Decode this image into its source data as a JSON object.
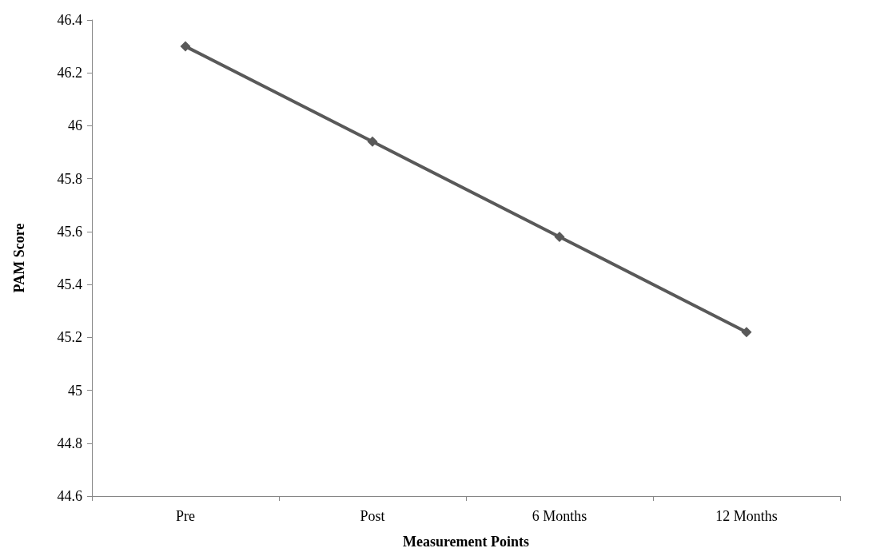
{
  "chart_data": {
    "type": "line",
    "xlabel": "Measurement Points",
    "ylabel": "PAM Score",
    "categories": [
      "Pre",
      "Post",
      "6 Months",
      "12 Months"
    ],
    "series": [
      {
        "color": "#595959",
        "values": [
          46.3,
          45.94,
          45.58,
          45.22
        ]
      }
    ],
    "ylim": [
      44.6,
      46.4
    ],
    "yticks": [
      44.6,
      44.8,
      45,
      45.2,
      45.4,
      45.6,
      45.8,
      46,
      46.2,
      46.4
    ],
    "grid": false,
    "marker": "diamond",
    "line_style": "solid"
  }
}
